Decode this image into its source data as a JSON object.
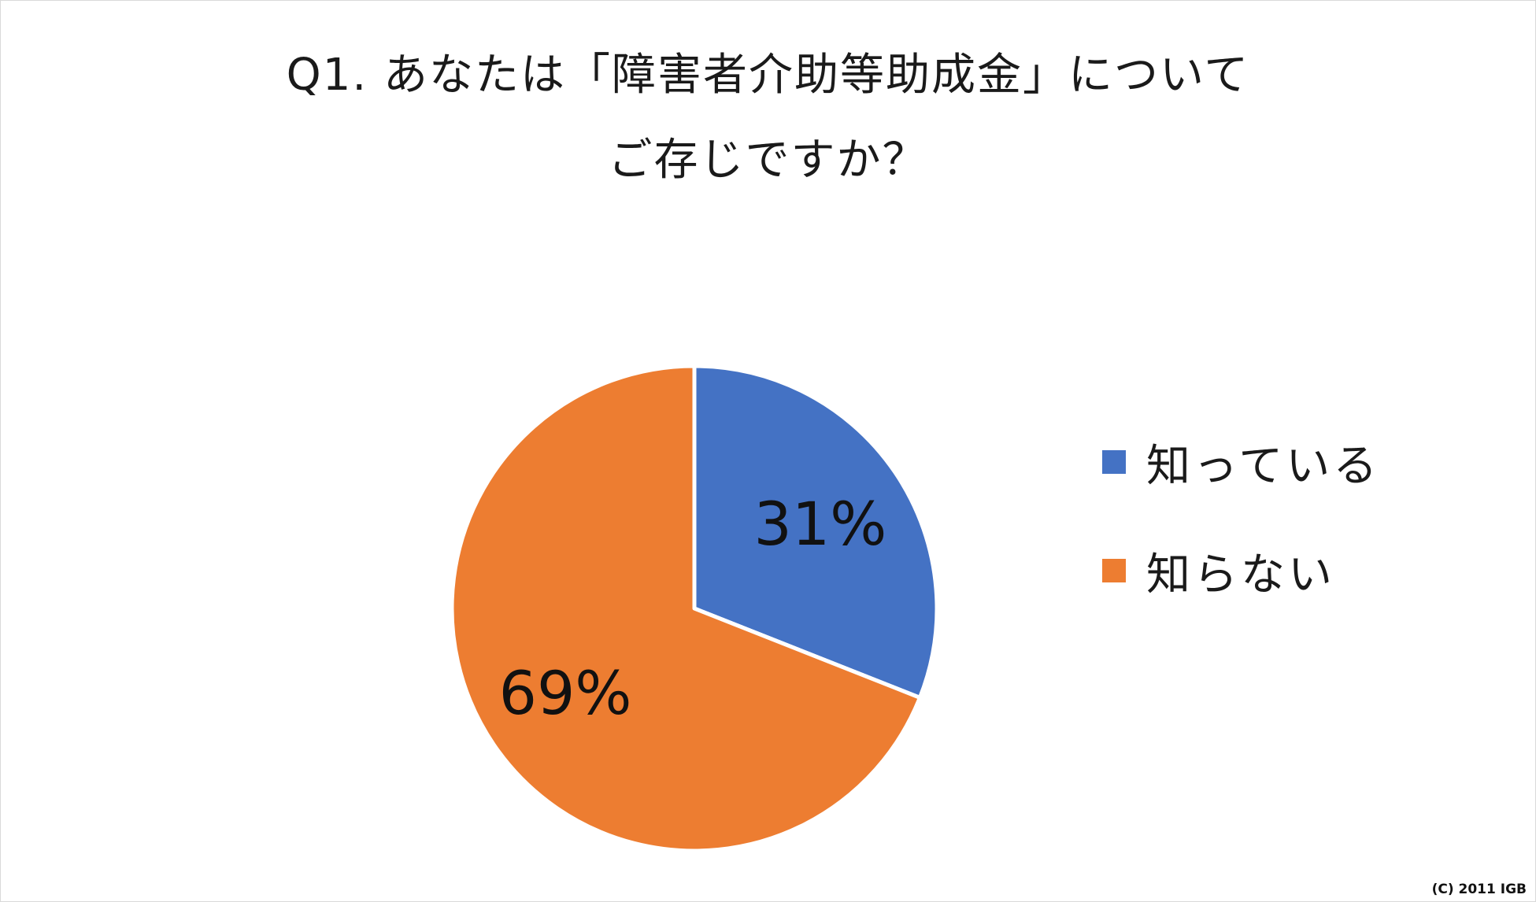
{
  "chart_data": {
    "type": "pie",
    "title_lines": [
      "Q1. あなたは「障害者介助等助成金」について",
      "ご存じですか？"
    ],
    "categories": [
      "知っている",
      "知らない"
    ],
    "values": [
      31,
      69
    ],
    "data_labels": [
      "31%",
      "69%"
    ],
    "colors": [
      "#4472c4",
      "#ed7d31"
    ],
    "legend_position": "right"
  },
  "footer": {
    "copyright": "(C) 2011 IGB"
  }
}
